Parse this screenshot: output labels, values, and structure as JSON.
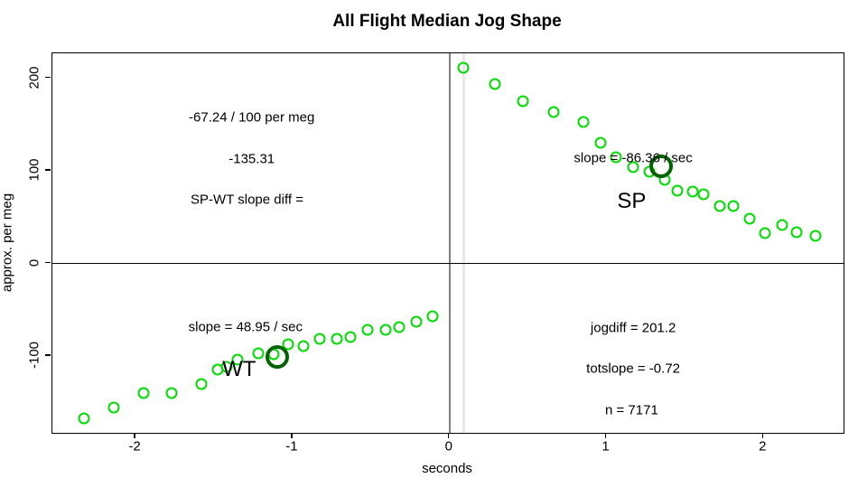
{
  "chart_data": {
    "type": "scatter",
    "title": "All Flight Median Jog Shape",
    "xlabel": "seconds",
    "ylabel": "approx. per meg",
    "xlim": [
      -2.53,
      2.51
    ],
    "ylim": [
      -183,
      227
    ],
    "x_ticks": [
      -2,
      -1,
      0,
      1,
      2
    ],
    "y_ticks": [
      -100,
      0,
      100,
      200
    ],
    "grid": false,
    "legend": "none",
    "point_color": "#00dd00",
    "median_marker_color": "#006400",
    "series": [
      {
        "name": "WT",
        "marker": "open-circle",
        "size": "small",
        "color": "#00dd00",
        "points": [
          [
            -2.33,
            -167
          ],
          [
            -2.14,
            -156
          ],
          [
            -1.95,
            -140
          ],
          [
            -1.77,
            -140
          ],
          [
            -1.58,
            -130
          ],
          [
            -1.48,
            -115
          ],
          [
            -1.42,
            -112
          ],
          [
            -1.35,
            -104
          ],
          [
            -1.22,
            -97
          ],
          [
            -1.12,
            -98
          ],
          [
            -1.03,
            -87
          ],
          [
            -0.93,
            -89
          ],
          [
            -0.83,
            -81
          ],
          [
            -0.72,
            -81
          ],
          [
            -0.63,
            -79
          ],
          [
            -0.52,
            -72
          ],
          [
            -0.41,
            -72
          ],
          [
            -0.32,
            -69
          ],
          [
            -0.21,
            -63
          ],
          [
            -0.11,
            -57
          ]
        ]
      },
      {
        "name": "SP",
        "marker": "open-circle",
        "size": "small",
        "color": "#00dd00",
        "points": [
          [
            0.09,
            211
          ],
          [
            0.29,
            194
          ],
          [
            0.47,
            175
          ],
          [
            0.66,
            164
          ],
          [
            0.85,
            153
          ],
          [
            0.96,
            130
          ],
          [
            1.06,
            115
          ],
          [
            1.17,
            104
          ],
          [
            1.27,
            99
          ],
          [
            1.37,
            90
          ],
          [
            1.45,
            79
          ],
          [
            1.55,
            78
          ],
          [
            1.62,
            75
          ],
          [
            1.72,
            62
          ],
          [
            1.81,
            62
          ],
          [
            1.91,
            48
          ],
          [
            2.01,
            33
          ],
          [
            2.12,
            42
          ],
          [
            2.21,
            34
          ],
          [
            2.33,
            30
          ]
        ]
      },
      {
        "name": "WT-median-marker",
        "marker": "open-circle-bold",
        "size": "large",
        "color": "#006400",
        "points": [
          [
            -1.1,
            -101
          ]
        ]
      },
      {
        "name": "SP-median-marker",
        "marker": "open-circle-bold",
        "size": "large",
        "color": "#006400",
        "points": [
          [
            1.35,
            105
          ]
        ]
      }
    ],
    "reference_lines": [
      {
        "orientation": "vertical",
        "x": 0.09,
        "color": "#e8e8e8",
        "weight": "thick"
      },
      {
        "orientation": "vertical",
        "x": 0,
        "color": "#808080",
        "weight": "thin"
      },
      {
        "orientation": "horizontal",
        "y": 0,
        "color": "#000000",
        "weight": "thin"
      }
    ],
    "annotations": [
      {
        "text": "-67.24 / 100 per meg",
        "x": -1.26,
        "y": 158,
        "size": "normal"
      },
      {
        "text": "-135.31",
        "x": -1.26,
        "y": 113,
        "size": "normal"
      },
      {
        "text": "SP-WT slope diff =",
        "x": -1.29,
        "y": 69,
        "size": "normal"
      },
      {
        "text": "slope = -86.36 / sec",
        "x": 1.17,
        "y": 114,
        "size": "normal"
      },
      {
        "text": "SP",
        "x": 1.16,
        "y": 67,
        "size": "large"
      },
      {
        "text": "slope = 48.95 / sec",
        "x": -1.3,
        "y": -69,
        "size": "normal"
      },
      {
        "text": "WT",
        "x": -1.34,
        "y": -115,
        "size": "large"
      },
      {
        "text": "jogdiff = 201.2",
        "x": 1.17,
        "y": -70,
        "size": "normal"
      },
      {
        "text": "totslope = -0.72",
        "x": 1.17,
        "y": -114,
        "size": "normal"
      },
      {
        "text": "n = 7171",
        "x": 1.16,
        "y": -159,
        "size": "normal"
      }
    ]
  }
}
